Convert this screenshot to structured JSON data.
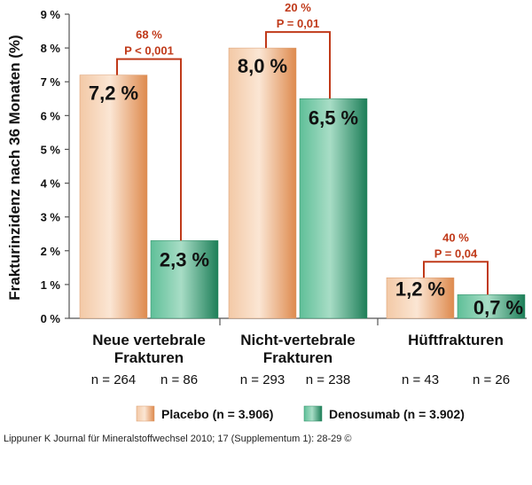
{
  "chart_data": {
    "type": "bar",
    "ylabel": "Frakturinzidenz nach 36 Monaten (%)",
    "ylim": [
      0,
      9
    ],
    "yticks": [
      "0 %",
      "1 %",
      "2 %",
      "3 %",
      "4 %",
      "5 %",
      "6 %",
      "7 %",
      "8 %",
      "9 %"
    ],
    "groups": [
      {
        "label_line1": "Neue vertebrale",
        "label_line2": "Frakturen",
        "placebo_value": 7.2,
        "placebo_label": "7,2 %",
        "placebo_n": "n = 264",
        "denosumab_value": 2.3,
        "denosumab_label": "2,3 %",
        "denosumab_n": "n = 86",
        "reduction": "68 %",
        "p_value": "P < 0,001"
      },
      {
        "label_line1": "Nicht-vertebrale",
        "label_line2": "Frakturen",
        "placebo_value": 8.0,
        "placebo_label": "8,0 %",
        "placebo_n": "n = 293",
        "denosumab_value": 6.5,
        "denosumab_label": "6,5 %",
        "denosumab_n": "n = 238",
        "reduction": "20 %",
        "p_value": "P = 0,01"
      },
      {
        "label_line1": "Hüftfrakturen",
        "label_line2": "",
        "placebo_value": 1.2,
        "placebo_label": "1,2 %",
        "placebo_n": "n = 43",
        "denosumab_value": 0.7,
        "denosumab_label": "0,7 %",
        "denosumab_n": "n = 26",
        "reduction": "40 %",
        "p_value": "P = 0,04"
      }
    ],
    "series": [
      {
        "name": "Placebo (n = 3.906)",
        "color": "#e8a070"
      },
      {
        "name": "Denosumab (n = 3.902)",
        "color": "#2f9a70"
      }
    ],
    "annotation_color": "#c03a1a"
  },
  "source": "Lippuner K Journal für Mineralstoffwechsel 2010; 17 (Supplementum 1): 28-29 ©"
}
